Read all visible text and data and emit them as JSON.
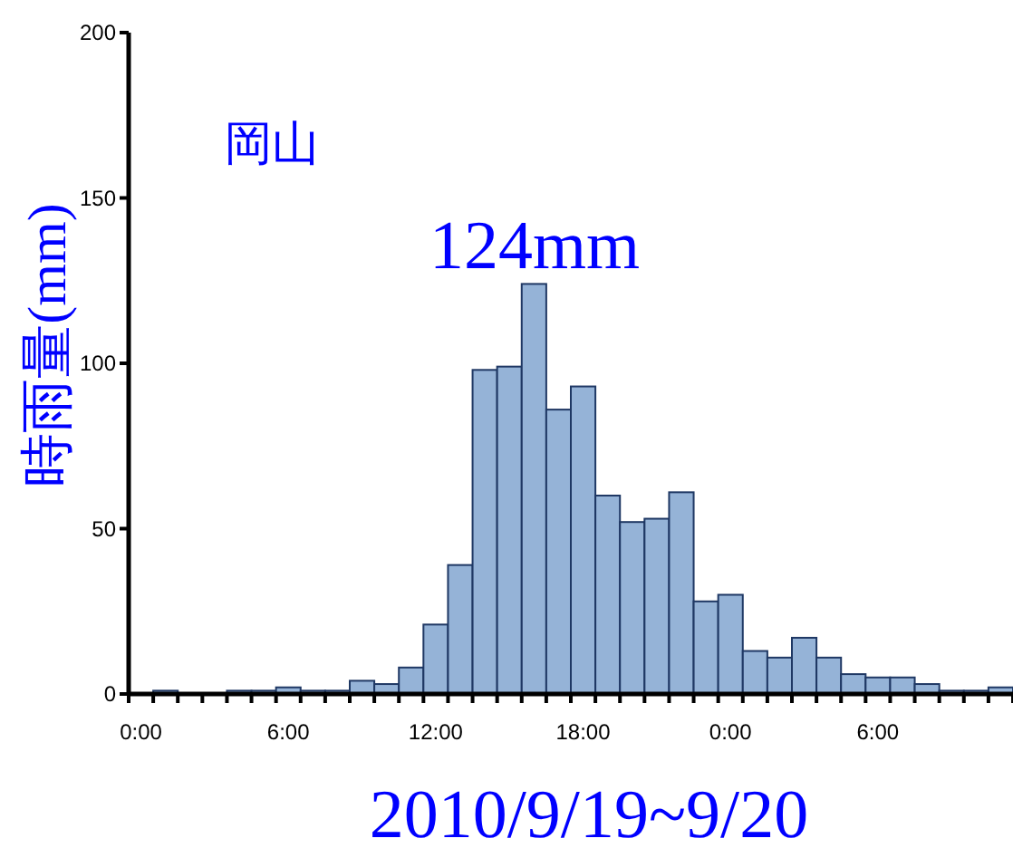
{
  "chart_data": {
    "type": "bar",
    "xlabel": "2010/9/19~9/20",
    "ylabel": "時雨量(mm)",
    "annotations": [
      "岡山",
      "124mm"
    ],
    "categories": [
      "0:00",
      null,
      null,
      null,
      null,
      null,
      "6:00",
      null,
      null,
      null,
      null,
      null,
      "12:00",
      null,
      null,
      null,
      null,
      null,
      "18:00",
      null,
      null,
      null,
      null,
      null,
      "0:00",
      null,
      null,
      null,
      null,
      null,
      "6:00",
      null,
      null,
      null,
      null,
      null
    ],
    "values": [
      0,
      1,
      0,
      0,
      1,
      1,
      2,
      1,
      1,
      4,
      3,
      8,
      21,
      39,
      98,
      99,
      124,
      86,
      93,
      60,
      52,
      53,
      61,
      28,
      30,
      13,
      11,
      17,
      11,
      6,
      5,
      5,
      3,
      1,
      1,
      2
    ],
    "color": "#95b3d7",
    "ylim": [
      0,
      200
    ],
    "yticks": [
      0,
      50,
      100,
      150,
      200
    ],
    "grid": false
  }
}
